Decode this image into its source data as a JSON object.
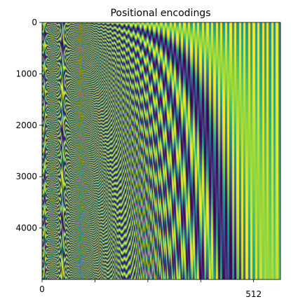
{
  "chart_data": {
    "type": "heatmap",
    "title": "Positional encodings",
    "xlabel": "",
    "ylabel": "",
    "xlim": [
      0,
      577
    ],
    "ylim": [
      5000,
      0
    ],
    "x_ticks": [
      {
        "value": 0,
        "label": "0"
      },
      {
        "value": 128,
        "label": ""
      },
      {
        "value": 256,
        "label": ""
      },
      {
        "value": 384,
        "label": ""
      },
      {
        "value": 512,
        "label": "512"
      }
    ],
    "y_ticks": [
      {
        "value": 0,
        "label": "0"
      },
      {
        "value": 1000,
        "label": "1000"
      },
      {
        "value": 2000,
        "label": "2000"
      },
      {
        "value": 3000,
        "label": "3000"
      },
      {
        "value": 4000,
        "label": "4000"
      }
    ],
    "value_range": [
      -1,
      1
    ],
    "colormap": "viridis",
    "grid": false,
    "legend": "none"
  }
}
